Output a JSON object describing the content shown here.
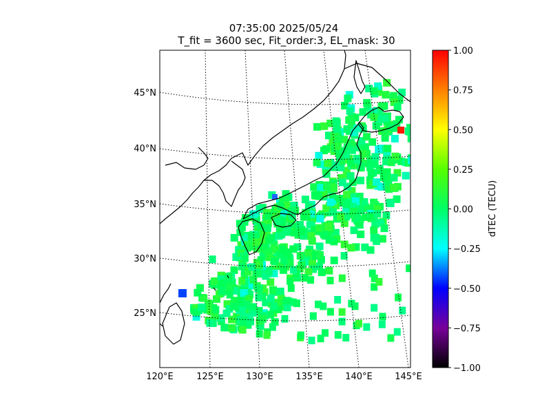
{
  "title": {
    "line1": "07:35:00 2025/05/24",
    "line2": "T_fit = 3600 sec, Fit_order:3, EL_mask: 30"
  },
  "map": {
    "projection": "conic",
    "lon_ticks": [
      "120°E",
      "125°E",
      "130°E",
      "135°E",
      "140°E",
      "145°E"
    ],
    "lat_ticks": [
      "25°N",
      "30°N",
      "35°N",
      "40°N",
      "45°N"
    ],
    "lon_range": [
      120,
      145
    ],
    "lat_range": [
      20,
      49
    ],
    "graticule": "dotted"
  },
  "colorbar": {
    "label": "dTEC (TECU)",
    "ticks": [
      "1.00",
      "0.75",
      "0.50",
      "0.25",
      "0.00",
      "−0.25",
      "−0.50",
      "−0.75",
      "−1.00"
    ],
    "range": [
      -1.0,
      1.0
    ],
    "colormap": [
      "#000000",
      "#7800a0",
      "#0000ff",
      "#00ffff",
      "#00ff66",
      "#66ff00",
      "#ffff00",
      "#ff8000",
      "#ff0000"
    ]
  },
  "chart_data": {
    "type": "heatmap",
    "quantity": "dTEC (TECU)",
    "dominant_value": 0.0,
    "anomalies": [
      {
        "lon": 122.5,
        "lat": 26.8,
        "value": -0.55
      },
      {
        "lon": 131.8,
        "lat": 35.6,
        "value": -0.5
      },
      {
        "lon": 144.4,
        "lat": 41.6,
        "value": 0.95
      }
    ]
  }
}
